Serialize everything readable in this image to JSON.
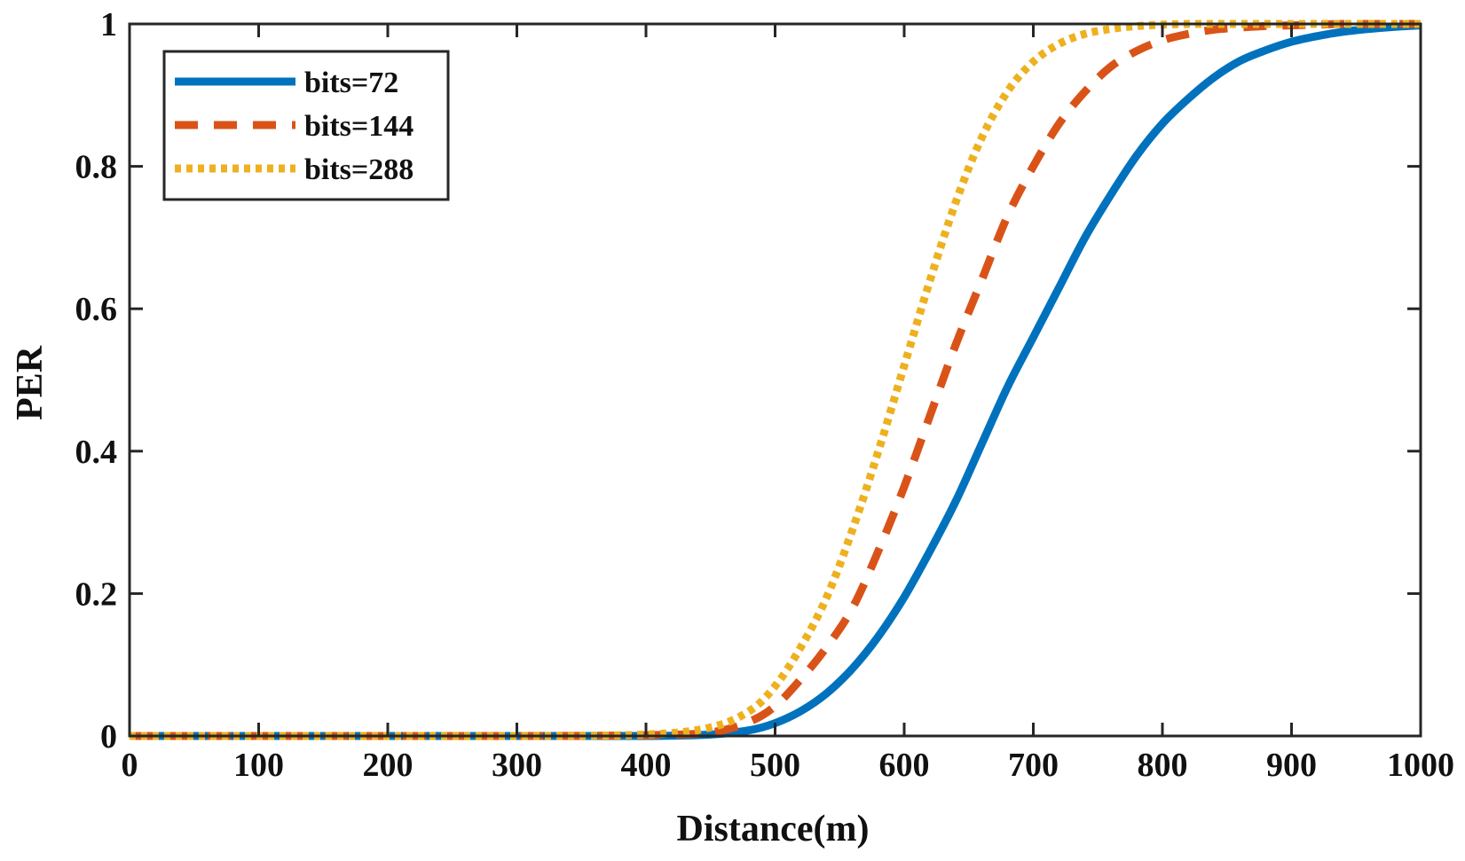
{
  "chart_data": {
    "type": "line",
    "title": "",
    "xlabel": "Distance(m)",
    "ylabel": "PER",
    "xlim": [
      0,
      1000
    ],
    "ylim": [
      0,
      1
    ],
    "xticks": [
      0,
      100,
      200,
      300,
      400,
      500,
      600,
      700,
      800,
      900,
      1000
    ],
    "yticks": [
      0,
      0.2,
      0.4,
      0.6,
      0.8,
      1
    ],
    "xtick_labels": [
      "0",
      "100",
      "200",
      "300",
      "400",
      "500",
      "600",
      "700",
      "800",
      "900",
      "1000"
    ],
    "ytick_labels": [
      "0",
      "0.2",
      "0.4",
      "0.6",
      "0.8",
      "1"
    ],
    "grid": false,
    "legend_position": "top-left",
    "x": [
      0,
      100,
      200,
      300,
      400,
      450,
      480,
      500,
      520,
      540,
      560,
      580,
      600,
      620,
      640,
      660,
      680,
      700,
      720,
      740,
      760,
      780,
      800,
      820,
      840,
      860,
      880,
      900,
      920,
      940,
      960,
      980,
      1000
    ],
    "series": [
      {
        "name": "bits=72",
        "color": "#0072BD",
        "style": "solid",
        "values": [
          0,
          0,
          0,
          0,
          0.0,
          0.002,
          0.008,
          0.018,
          0.035,
          0.06,
          0.095,
          0.14,
          0.195,
          0.26,
          0.33,
          0.41,
          0.49,
          0.56,
          0.63,
          0.7,
          0.76,
          0.815,
          0.86,
          0.895,
          0.925,
          0.948,
          0.963,
          0.975,
          0.983,
          0.989,
          0.993,
          0.996,
          0.998
        ]
      },
      {
        "name": "bits=144",
        "color": "#D95319",
        "style": "dashed",
        "values": [
          0,
          0,
          0,
          0,
          0.001,
          0.005,
          0.02,
          0.042,
          0.08,
          0.125,
          0.18,
          0.26,
          0.35,
          0.45,
          0.55,
          0.64,
          0.73,
          0.8,
          0.86,
          0.905,
          0.94,
          0.962,
          0.977,
          0.986,
          0.992,
          0.995,
          0.997,
          0.998,
          0.999,
          1.0,
          1.0,
          1.0,
          1.0
        ]
      },
      {
        "name": "bits=288",
        "color": "#EDB120",
        "style": "dotted",
        "values": [
          0,
          0,
          0,
          0,
          0.002,
          0.012,
          0.035,
          0.07,
          0.125,
          0.195,
          0.29,
          0.4,
          0.52,
          0.64,
          0.75,
          0.84,
          0.905,
          0.947,
          0.972,
          0.986,
          0.993,
          0.997,
          0.999,
          1.0,
          1.0,
          1.0,
          1.0,
          1.0,
          1.0,
          1.0,
          1.0,
          1.0,
          1.0
        ]
      }
    ]
  }
}
